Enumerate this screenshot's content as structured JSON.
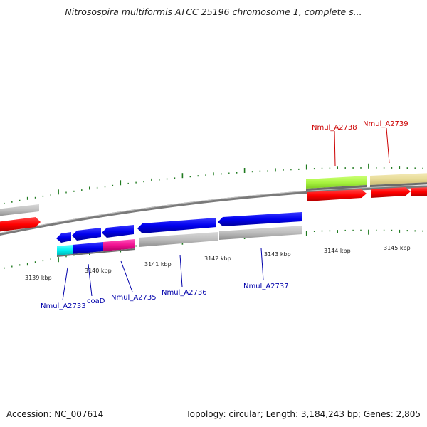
{
  "title": "Nitrosospira multiformis ATCC 25196 chromosome 1, complete s...",
  "colors": {
    "backbone": "#8a8a8a",
    "ticks": "#1f7a1f",
    "label_forward": "#cc0000",
    "label_reverse": "#0000aa"
  },
  "scale_labels": [
    {
      "id": "t3139",
      "text": "3139 kbp"
    },
    {
      "id": "t3140",
      "text": "3140 kbp"
    },
    {
      "id": "t3141",
      "text": "3141 kbp"
    },
    {
      "id": "t3142",
      "text": "3142 kbp"
    },
    {
      "id": "t3143",
      "text": "3143 kbp"
    },
    {
      "id": "t3144",
      "text": "3144 kbp"
    },
    {
      "id": "t3145",
      "text": "3145 kbp"
    }
  ],
  "gene_labels": [
    {
      "id": "g2738",
      "text": "Nmul_A2738",
      "strand": "forward"
    },
    {
      "id": "g2739",
      "text": "Nmul_A2739",
      "strand": "forward"
    },
    {
      "id": "g2733",
      "text": "Nmul_A2733",
      "strand": "reverse"
    },
    {
      "id": "gcoaD",
      "text": "coaD",
      "strand": "reverse"
    },
    {
      "id": "g2735",
      "text": "Nmul_A2735",
      "strand": "reverse"
    },
    {
      "id": "g2736",
      "text": "Nmul_A2736",
      "strand": "reverse"
    },
    {
      "id": "g2737",
      "text": "Nmul_A2737",
      "strand": "reverse"
    }
  ],
  "footer": {
    "accession": "Accession: NC_007614",
    "summary": "Topology: circular; Length: 3,184,243 bp; Genes: 2,805"
  }
}
